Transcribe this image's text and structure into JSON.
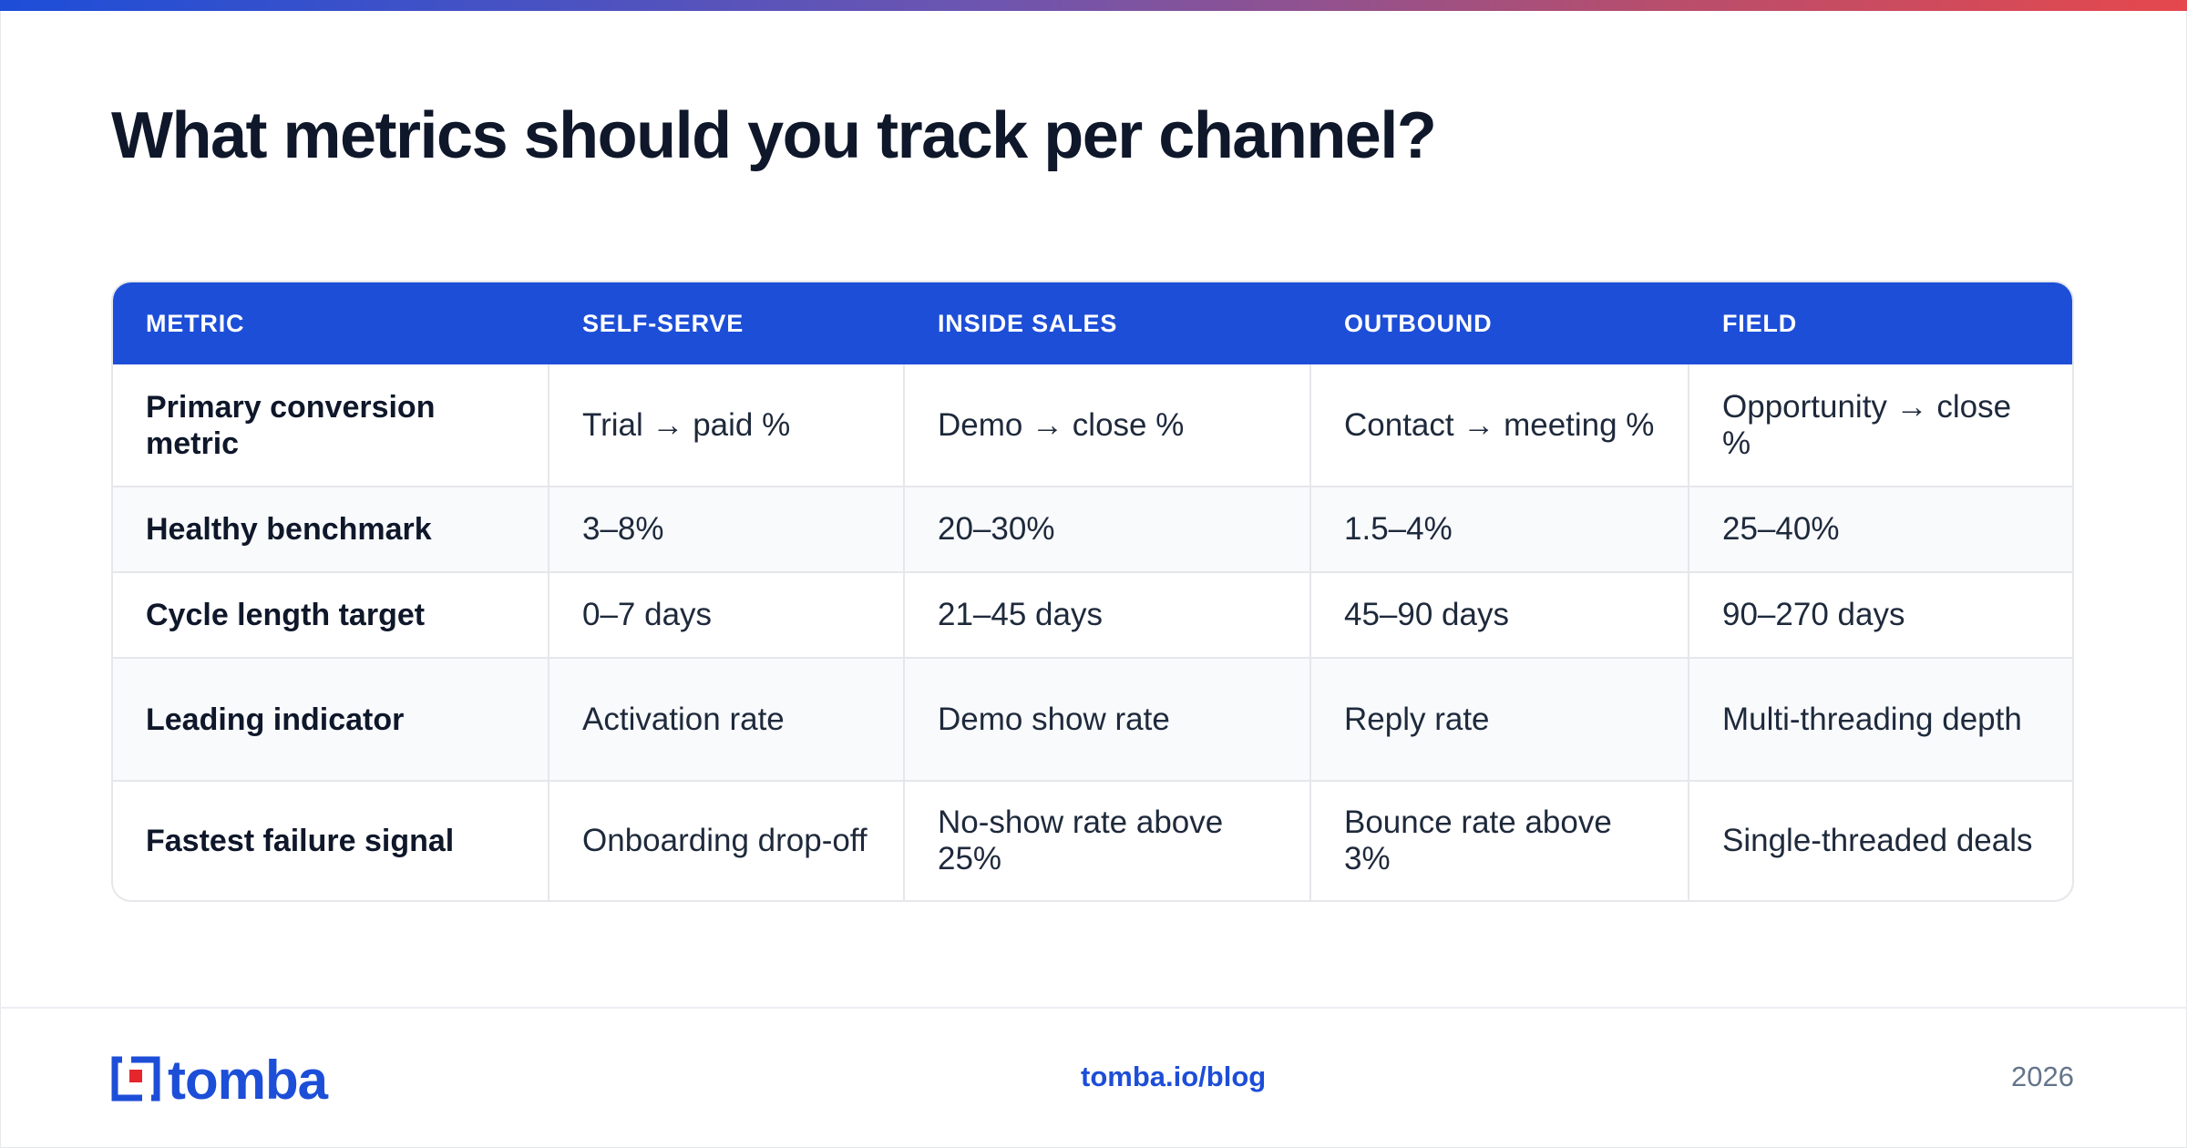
{
  "title": "What metrics should you track per channel?",
  "colors": {
    "accent": "#1d4ed8",
    "gradient_start": "#1d4ed8",
    "gradient_end": "#e5484d",
    "logo_red": "#e5272d"
  },
  "table": {
    "headers": [
      "METRIC",
      "SELF-SERVE",
      "INSIDE SALES",
      "OUTBOUND",
      "FIELD"
    ],
    "rows": [
      [
        "Primary conversion metric",
        "Trial → paid %",
        "Demo → close %",
        "Contact → meeting %",
        "Opportunity → close %"
      ],
      [
        "Healthy benchmark",
        "3–8%",
        "20–30%",
        "1.5–4%",
        "25–40%"
      ],
      [
        "Cycle length target",
        "0–7 days",
        "21–45 days",
        "45–90 days",
        "90–270 days"
      ],
      [
        "Leading indicator",
        "Activation rate",
        "Demo show rate",
        "Reply rate",
        "Multi-threading depth"
      ],
      [
        "Fastest failure signal",
        "Onboarding drop-off",
        "No-show rate above 25%",
        "Bounce rate above 3%",
        "Single-threaded deals"
      ]
    ]
  },
  "footer": {
    "logo_text": "tomba",
    "logo_icon": "tomba-bracket-logo-icon",
    "url": "tomba.io/blog",
    "year": "2026"
  }
}
